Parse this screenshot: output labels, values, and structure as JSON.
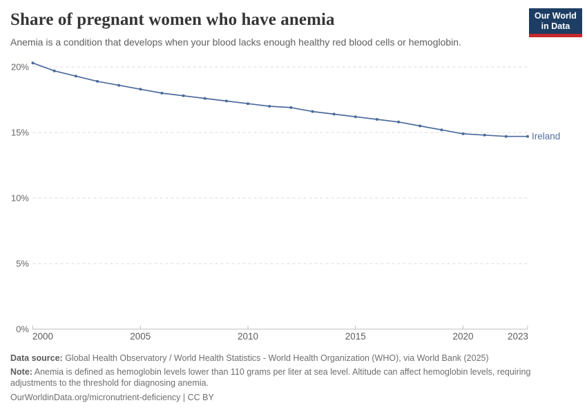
{
  "header": {
    "title": "Share of pregnant women who have anemia",
    "subtitle": "Anemia is a condition that develops when your blood lacks enough healthy red blood cells or hemoglobin.",
    "logo_line1": "Our World",
    "logo_line2": "in Data"
  },
  "chart_data": {
    "type": "line",
    "title": "Share of pregnant women who have anemia",
    "xlabel": "",
    "ylabel": "",
    "x": [
      2000,
      2001,
      2002,
      2003,
      2004,
      2005,
      2006,
      2007,
      2008,
      2009,
      2010,
      2011,
      2012,
      2013,
      2014,
      2015,
      2016,
      2017,
      2018,
      2019,
      2020,
      2021,
      2022,
      2023
    ],
    "series": [
      {
        "name": "Ireland",
        "color": "#4c6a9c",
        "values": [
          20.3,
          19.7,
          19.3,
          18.9,
          18.6,
          18.3,
          18.0,
          17.8,
          17.6,
          17.4,
          17.2,
          17.0,
          16.9,
          16.6,
          16.4,
          16.2,
          16.0,
          15.8,
          15.5,
          15.2,
          14.9,
          14.8,
          14.7,
          14.7
        ]
      }
    ],
    "x_ticks": [
      2000,
      2005,
      2010,
      2015,
      2020,
      2023
    ],
    "y_ticks": [
      0,
      5,
      10,
      15,
      20
    ],
    "y_tick_suffix": "%",
    "xlim": [
      2000,
      2023
    ],
    "ylim": [
      0,
      20
    ],
    "grid": "horizontal-dashed",
    "legend": "end-of-line-label"
  },
  "footer": {
    "source_label": "Data source:",
    "source_text": " Global Health Observatory / World Health Statistics - World Health Organization (WHO), via World Bank (2025)",
    "note_label": "Note:",
    "note_text": " Anemia is defined as hemoglobin levels lower than 110 grams per liter at sea level. Altitude can affect hemoglobin levels, requiring adjustments to the threshold for diagnosing anemia.",
    "link": "OurWorldinData.org/micronutrient-deficiency",
    "license": " | CC BY"
  },
  "colors": {
    "line": "#4c6a9c",
    "entity_label": "#53709c",
    "grid": "#dadada",
    "axis": "#bcbcbc",
    "tick_label": "#5b5b5b",
    "y_tick_label": "#666666"
  }
}
